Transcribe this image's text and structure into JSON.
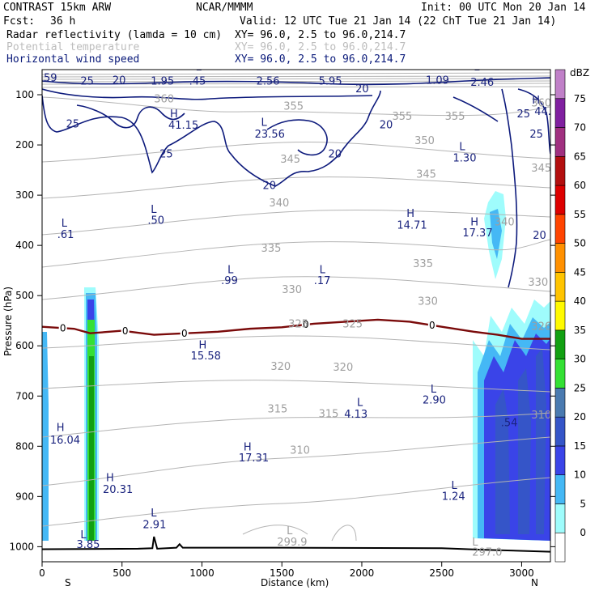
{
  "header": {
    "model": "CONTRAST 15km ARW",
    "center": "NCAR/MMMM",
    "init": "Init: 00 UTC Mon 20 Jan 14",
    "fcst_label": "Fcst:",
    "fcst_value": "36 h",
    "valid": "Valid: 12 UTC Tue 21 Jan 14 (22 ChT Tue 21 Jan 14)",
    "fields": [
      {
        "name": "Radar reflectivity (lamda = 10 cm)",
        "xy": "XY=  96.0,  2.5 to  96.0,214.7"
      },
      {
        "name": "Potential temperature",
        "xy": "XY=  96.0,  2.5 to  96.0,214.7"
      },
      {
        "name": "Horizontal wind speed",
        "xy": "XY=  96.0,  2.5 to  96.0,214.7"
      }
    ]
  },
  "chart_data": {
    "type": "cross-section",
    "xlabel": "Distance (km)",
    "ylabel": "Pressure (hPa)",
    "xlim": [
      0,
      3180
    ],
    "ylim": [
      1030,
      50
    ],
    "x_ticks": [
      0,
      500,
      1000,
      1500,
      2000,
      2500,
      3000
    ],
    "y_ticks": [
      100,
      200,
      300,
      400,
      500,
      600,
      700,
      800,
      900,
      1000
    ],
    "end_labels": {
      "left": "S",
      "right": "N"
    },
    "colorbar": {
      "unit": "dBZ",
      "levels": [
        0,
        5,
        10,
        15,
        20,
        25,
        30,
        35,
        40,
        45,
        50,
        55,
        60,
        65,
        70,
        75
      ],
      "colors": [
        "#ffffff",
        "#9ffcfc",
        "#45b8f5",
        "#3a44e8",
        "#3555c8",
        "#4a7ab0",
        "#34e034",
        "#12a012",
        "#fffa00",
        "#ffc400",
        "#ff9000",
        "#ff4400",
        "#dd0000",
        "#b30f0f",
        "#a03080",
        "#8020a0",
        "#c080c8"
      ]
    },
    "wind_speed_labels": [
      {
        "text": "59",
        "x": 10,
        "p": 73
      },
      {
        "text": "25",
        "x": 240,
        "p": 80
      },
      {
        "text": "20",
        "x": 440,
        "p": 78
      },
      {
        "text": "1.95",
        "x": 680,
        "p": 80
      },
      {
        "text": ".45",
        "x": 920,
        "p": 80
      },
      {
        "text": "2.56",
        "x": 1340,
        "p": 80
      },
      {
        "text": "5.95",
        "x": 1730,
        "p": 80
      },
      {
        "text": "20",
        "x": 1960,
        "p": 95
      },
      {
        "text": "1.09",
        "x": 2400,
        "p": 78
      },
      {
        "text": "2.46",
        "x": 2680,
        "p": 82
      },
      {
        "text": "L",
        "x": 960,
        "p": 52
      },
      {
        "text": "L",
        "x": 2700,
        "p": 52
      },
      {
        "text": "25",
        "x": 150,
        "p": 165
      },
      {
        "text": "H",
        "x": 800,
        "p": 145
      },
      {
        "text": "41.15",
        "x": 790,
        "p": 168
      },
      {
        "text": "L",
        "x": 1370,
        "p": 162
      },
      {
        "text": "23.56",
        "x": 1330,
        "p": 185
      },
      {
        "text": "20",
        "x": 2110,
        "p": 167
      },
      {
        "text": "25",
        "x": 2970,
        "p": 145
      },
      {
        "text": "H",
        "x": 3065,
        "p": 118
      },
      {
        "text": "44.1",
        "x": 3080,
        "p": 140
      },
      {
        "text": "25",
        "x": 3050,
        "p": 185
      },
      {
        "text": "25",
        "x": 735,
        "p": 225
      },
      {
        "text": "20",
        "x": 1790,
        "p": 225
      },
      {
        "text": "20",
        "x": 1380,
        "p": 288
      },
      {
        "text": "L",
        "x": 2610,
        "p": 210
      },
      {
        "text": "1.30",
        "x": 2570,
        "p": 233
      },
      {
        "text": "20",
        "x": 3070,
        "p": 387
      }
    ],
    "annotation_labels": [
      {
        "text": "L",
        "x": 120,
        "p": 363
      },
      {
        "text": ".61",
        "x": 95,
        "p": 385
      },
      {
        "text": "L",
        "x": 680,
        "p": 335
      },
      {
        "text": ".50",
        "x": 660,
        "p": 357
      },
      {
        "text": "L",
        "x": 1160,
        "p": 455
      },
      {
        "text": ".99",
        "x": 1120,
        "p": 477
      },
      {
        "text": "L",
        "x": 1735,
        "p": 455
      },
      {
        "text": ".17",
        "x": 1700,
        "p": 477
      },
      {
        "text": "H",
        "x": 2280,
        "p": 343
      },
      {
        "text": "14.71",
        "x": 2220,
        "p": 367
      },
      {
        "text": "H",
        "x": 2680,
        "p": 360
      },
      {
        "text": "17.37",
        "x": 2630,
        "p": 382
      },
      {
        "text": "H",
        "x": 980,
        "p": 605
      },
      {
        "text": "15.58",
        "x": 930,
        "p": 627
      },
      {
        "text": "L",
        "x": 2430,
        "p": 693
      },
      {
        "text": "2.90",
        "x": 2380,
        "p": 715
      },
      {
        "text": "L",
        "x": 1970,
        "p": 720
      },
      {
        "text": "4.13",
        "x": 1890,
        "p": 743
      },
      {
        "text": ".54",
        "x": 2870,
        "p": 760
      },
      {
        "text": "H",
        "x": 90,
        "p": 770
      },
      {
        "text": "16.04",
        "x": 50,
        "p": 795
      },
      {
        "text": "H",
        "x": 1260,
        "p": 808
      },
      {
        "text": "17.31",
        "x": 1230,
        "p": 830
      },
      {
        "text": "H",
        "x": 400,
        "p": 870
      },
      {
        "text": "20.31",
        "x": 380,
        "p": 893
      },
      {
        "text": "L",
        "x": 2560,
        "p": 885
      },
      {
        "text": "1.24",
        "x": 2500,
        "p": 907
      },
      {
        "text": "L",
        "x": 680,
        "p": 940
      },
      {
        "text": "2.91",
        "x": 630,
        "p": 963
      },
      {
        "text": "L",
        "x": 240,
        "p": 983
      },
      {
        "text": "3.85",
        "x": 215,
        "p": 1003
      }
    ],
    "theta_labels": [
      {
        "text": "360",
        "x": 700,
        "p": 115
      },
      {
        "text": "355",
        "x": 1510,
        "p": 130
      },
      {
        "text": "355",
        "x": 2190,
        "p": 150
      },
      {
        "text": "355",
        "x": 2520,
        "p": 150
      },
      {
        "text": "360",
        "x": 3060,
        "p": 123
      },
      {
        "text": "350",
        "x": 2330,
        "p": 198
      },
      {
        "text": "345",
        "x": 1490,
        "p": 235
      },
      {
        "text": "345",
        "x": 2340,
        "p": 265
      },
      {
        "text": "345",
        "x": 3060,
        "p": 253
      },
      {
        "text": "340",
        "x": 1420,
        "p": 322
      },
      {
        "text": "340",
        "x": 2830,
        "p": 360
      },
      {
        "text": "335",
        "x": 1370,
        "p": 413
      },
      {
        "text": "335",
        "x": 2320,
        "p": 443
      },
      {
        "text": "330",
        "x": 1500,
        "p": 495
      },
      {
        "text": "330",
        "x": 2350,
        "p": 518
      },
      {
        "text": "330",
        "x": 3040,
        "p": 480
      },
      {
        "text": "325",
        "x": 1540,
        "p": 563
      },
      {
        "text": "325",
        "x": 1880,
        "p": 563
      },
      {
        "text": "320",
        "x": 1430,
        "p": 648
      },
      {
        "text": "320",
        "x": 1820,
        "p": 650
      },
      {
        "text": "315",
        "x": 1410,
        "p": 733
      },
      {
        "text": "315",
        "x": 1730,
        "p": 742
      },
      {
        "text": "310",
        "x": 1550,
        "p": 815
      },
      {
        "text": "310",
        "x": 3060,
        "p": 745
      },
      {
        "text": "L",
        "x": 1530,
        "p": 975
      },
      {
        "text": "299.9",
        "x": 1470,
        "p": 998
      },
      {
        "text": "L",
        "x": 2690,
        "p": 998
      },
      {
        "text": "297.0",
        "x": 2690,
        "p": 1018
      },
      {
        "text": "326",
        "x": 3060,
        "p": 568
      }
    ],
    "freezing_level": {
      "label": "0",
      "points": [
        [
          0,
          562
        ],
        [
          200,
          566
        ],
        [
          300,
          575
        ],
        [
          500,
          570
        ],
        [
          700,
          578
        ],
        [
          900,
          575
        ],
        [
          1100,
          572
        ],
        [
          1300,
          566
        ],
        [
          1500,
          563
        ],
        [
          1700,
          556
        ],
        [
          1900,
          552
        ],
        [
          2100,
          548
        ],
        [
          2300,
          552
        ],
        [
          2500,
          562
        ],
        [
          2700,
          572
        ],
        [
          2850,
          578
        ],
        [
          3000,
          586
        ],
        [
          3180,
          586
        ]
      ],
      "label_x": [
        130,
        520,
        890,
        1650,
        2440
      ]
    },
    "terrain": [
      [
        0,
        1005
      ],
      [
        600,
        1004
      ],
      [
        690,
        1003
      ],
      [
        700,
        980
      ],
      [
        720,
        1004
      ],
      [
        840,
        1002
      ],
      [
        860,
        995
      ],
      [
        880,
        1002
      ],
      [
        1500,
        1002
      ],
      [
        2500,
        1003
      ],
      [
        2750,
        1006
      ],
      [
        3180,
        1010
      ]
    ]
  }
}
